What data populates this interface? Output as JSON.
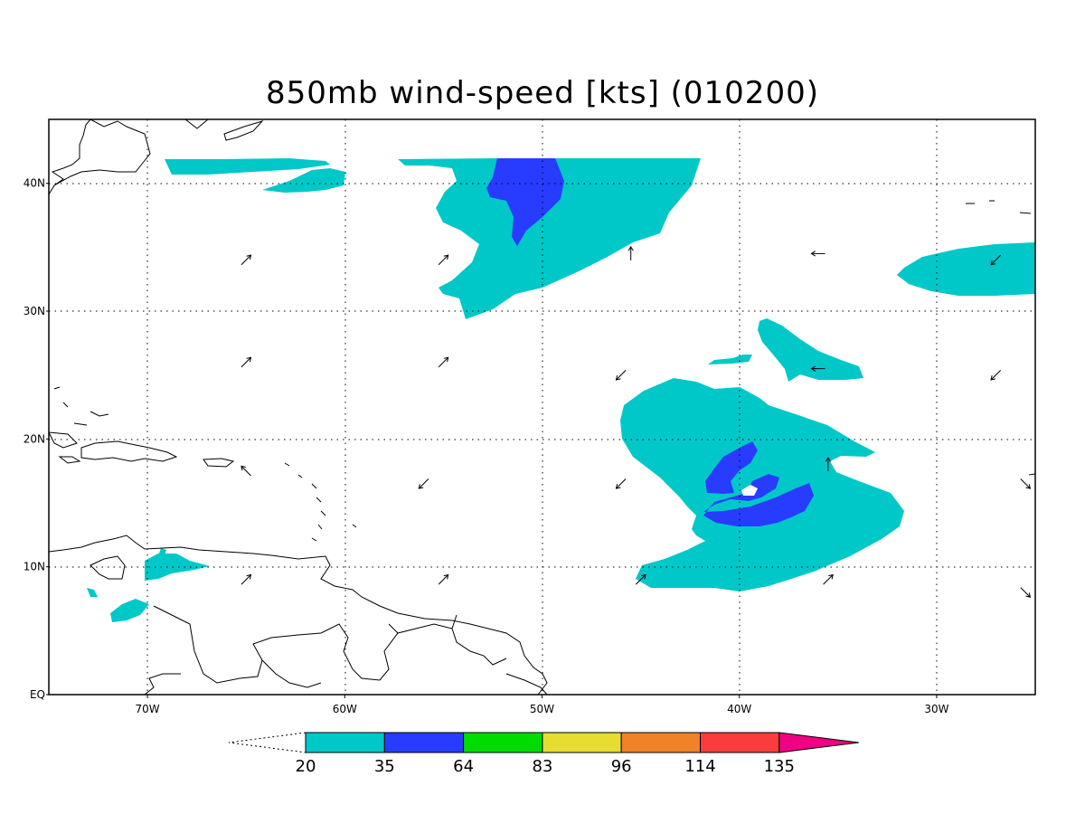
{
  "title": "850mb wind-speed [kts] (010200)",
  "map": {
    "lon_range": [
      -75,
      -25
    ],
    "lat_range": [
      0,
      45
    ],
    "lat_ticks": [
      {
        "value": 40,
        "label": "40N"
      },
      {
        "value": 30,
        "label": "30N"
      },
      {
        "value": 20,
        "label": "20N"
      },
      {
        "value": 10,
        "label": "10N"
      },
      {
        "value": 0,
        "label": "EQ"
      }
    ],
    "lon_ticks": [
      {
        "value": -70,
        "label": "70W"
      },
      {
        "value": -60,
        "label": "60W"
      },
      {
        "value": -50,
        "label": "50W"
      },
      {
        "value": -40,
        "label": "40W"
      },
      {
        "value": -30,
        "label": "30W"
      }
    ],
    "grid": true,
    "coastline_color": "#000000"
  },
  "colorbar": {
    "levels": [
      "20",
      "35",
      "64",
      "83",
      "96",
      "114",
      "135"
    ],
    "colors": [
      "#00c8c8",
      "#283cff",
      "#00dc00",
      "#e6dc32",
      "#f08228",
      "#fa3c3c",
      "#f00082"
    ],
    "under_color": "#ffffff"
  },
  "chart_data": {
    "type": "heatmap",
    "variable": "850mb wind-speed",
    "units": "kts",
    "contour_levels": [
      20,
      35,
      64,
      83,
      96,
      114,
      135
    ],
    "regions": [
      {
        "level": "20-35",
        "color": "#00c8c8",
        "lon": [
          -59,
          -42
        ],
        "lat": [
          30,
          42
        ]
      },
      {
        "level": "35-64",
        "color": "#283cff",
        "lon": [
          -53,
          -49
        ],
        "lat": [
          35,
          42
        ]
      },
      {
        "level": "20-35",
        "color": "#00c8c8",
        "lon": [
          -46,
          -27
        ],
        "lat": [
          8.5,
          26.5
        ]
      },
      {
        "level": "35-64",
        "color": "#283cff",
        "lon": [
          -42,
          -37
        ],
        "lat": [
          14,
          20
        ]
      },
      {
        "level": "20-35",
        "color": "#00c8c8",
        "lon": [
          -39,
          -34
        ],
        "lat": [
          24,
          29
        ]
      },
      {
        "level": "20-35",
        "color": "#00c8c8",
        "lon": [
          -32,
          -25
        ],
        "lat": [
          31.5,
          35.5
        ]
      },
      {
        "level": "20-35",
        "color": "#00c8c8",
        "lon": [
          -69,
          -62
        ],
        "lat": [
          39,
          42
        ]
      },
      {
        "level": "20-35",
        "color": "#00c8c8",
        "lon": [
          -72,
          -65
        ],
        "lat": [
          6,
          11
        ]
      }
    ],
    "vectors": [
      {
        "lon": -65,
        "lat": 34,
        "direction": "NE"
      },
      {
        "lon": -55,
        "lat": 34,
        "direction": "NE"
      },
      {
        "lon": -45.5,
        "lat": 34.5,
        "direction": "N"
      },
      {
        "lon": -36,
        "lat": 34.5,
        "direction": "W"
      },
      {
        "lon": -27,
        "lat": 34,
        "direction": "SW"
      },
      {
        "lon": -65,
        "lat": 26,
        "direction": "NE"
      },
      {
        "lon": -55,
        "lat": 26,
        "direction": "NE"
      },
      {
        "lon": -46,
        "lat": 25,
        "direction": "SW"
      },
      {
        "lon": -36,
        "lat": 25.5,
        "direction": "W"
      },
      {
        "lon": -27,
        "lat": 25,
        "direction": "SW"
      },
      {
        "lon": -65,
        "lat": 17.5,
        "direction": "NW"
      },
      {
        "lon": -56,
        "lat": 16.5,
        "direction": "SW"
      },
      {
        "lon": -46,
        "lat": 16.5,
        "direction": "SW"
      },
      {
        "lon": -35.5,
        "lat": 18,
        "direction": "N"
      },
      {
        "lon": -25.5,
        "lat": 16.5,
        "direction": "SE"
      },
      {
        "lon": -65,
        "lat": 9,
        "direction": "NE"
      },
      {
        "lon": -55,
        "lat": 9,
        "direction": "NE"
      },
      {
        "lon": -45,
        "lat": 9,
        "direction": "NE"
      },
      {
        "lon": -35.5,
        "lat": 9,
        "direction": "NE"
      },
      {
        "lon": -25.5,
        "lat": 8,
        "direction": "SE"
      }
    ]
  }
}
